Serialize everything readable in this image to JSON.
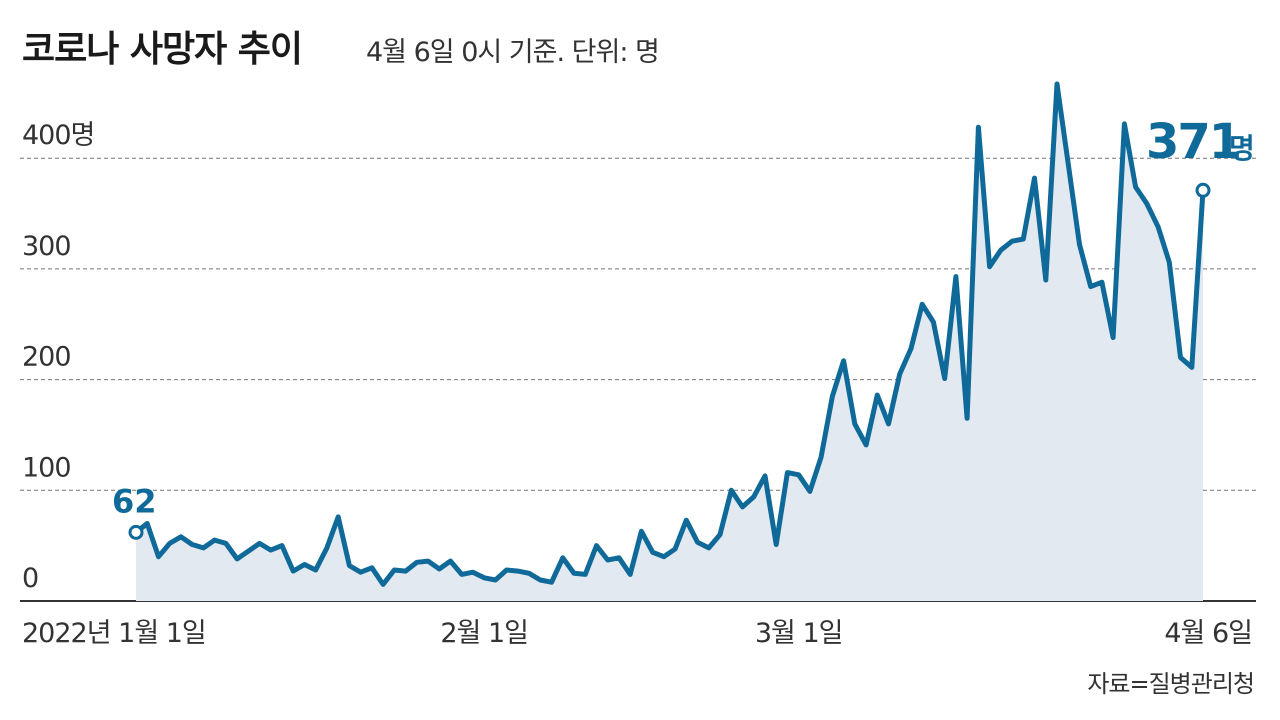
{
  "header": {
    "title": "코로나 사망자 추이",
    "subtitle": "4월 6일 0시 기준. 단위: 명"
  },
  "footer": {
    "source": "자료=질병관리청"
  },
  "colors": {
    "line": "#0f6a99",
    "area": "#e3e9f1",
    "grid": "#777777",
    "axis": "#333333"
  },
  "chart_data": {
    "type": "area",
    "title": "코로나 사망자 추이",
    "subtitle": "4월 6일 0시 기준. 단위: 명",
    "ylim": [
      0,
      400
    ],
    "yticks": [
      {
        "value": 0,
        "label": "0"
      },
      {
        "value": 100,
        "label": "100"
      },
      {
        "value": 200,
        "label": "200"
      },
      {
        "value": 300,
        "label": "300"
      },
      {
        "value": 400,
        "label": "400명"
      }
    ],
    "xticks": [
      {
        "index": 0,
        "label": "2022년 1월 1일"
      },
      {
        "index": 31,
        "label": "2월 1일"
      },
      {
        "index": 59,
        "label": "3월 1일"
      },
      {
        "index": 95,
        "label": "4월 6일"
      }
    ],
    "grid": true,
    "start_label": "62",
    "end_label": {
      "value": "371",
      "unit": "명"
    },
    "values": [
      62,
      70,
      40,
      52,
      58,
      51,
      48,
      55,
      52,
      38,
      45,
      52,
      46,
      50,
      27,
      33,
      28,
      48,
      76,
      32,
      26,
      30,
      15,
      28,
      27,
      35,
      36,
      29,
      36,
      24,
      26,
      21,
      19,
      28,
      27,
      25,
      19,
      17,
      39,
      25,
      24,
      50,
      37,
      39,
      24,
      63,
      44,
      40,
      47,
      73,
      53,
      48,
      60,
      100,
      85,
      94,
      113,
      51,
      116,
      114,
      99,
      130,
      185,
      217,
      160,
      141,
      186,
      160,
      205,
      228,
      268,
      252,
      201,
      293,
      165,
      428,
      302,
      317,
      325,
      327,
      382,
      290,
      467,
      395,
      322,
      284,
      288,
      238,
      431,
      374,
      359,
      338,
      306,
      220,
      211,
      371
    ]
  }
}
